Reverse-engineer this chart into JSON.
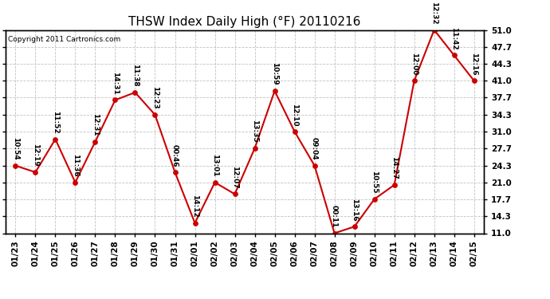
{
  "title": "THSW Index Daily High (°F) 20110216",
  "copyright": "Copyright 2011 Cartronics.com",
  "dates": [
    "01/23",
    "01/24",
    "01/25",
    "01/26",
    "01/27",
    "01/28",
    "01/29",
    "01/30",
    "01/31",
    "02/01",
    "02/02",
    "02/03",
    "02/04",
    "02/05",
    "02/06",
    "02/07",
    "02/08",
    "02/09",
    "02/10",
    "02/11",
    "02/12",
    "02/13",
    "02/14",
    "02/15"
  ],
  "values": [
    24.3,
    23.0,
    29.5,
    21.0,
    29.0,
    37.2,
    38.7,
    34.3,
    23.0,
    13.0,
    21.0,
    18.7,
    27.7,
    39.0,
    31.0,
    24.3,
    11.0,
    12.3,
    17.7,
    20.5,
    41.0,
    51.0,
    46.0,
    41.0
  ],
  "labels": [
    "10:54",
    "12:19",
    "11:52",
    "11:36",
    "12:31",
    "14:31",
    "11:38",
    "12:23",
    "00:46",
    "14:12",
    "13:01",
    "12:07",
    "13:35",
    "10:59",
    "12:10",
    "09:04",
    "00:11",
    "13:16",
    "10:55",
    "14:27",
    "12:00",
    "12:32",
    "11:42",
    "12:16"
  ],
  "line_color": "#cc0000",
  "marker_color": "#cc0000",
  "background_color": "#ffffff",
  "grid_color": "#bbbbbb",
  "ylim": [
    11.0,
    51.0
  ],
  "yticks": [
    11.0,
    14.3,
    17.7,
    21.0,
    24.3,
    27.7,
    31.0,
    34.3,
    37.7,
    41.0,
    44.3,
    47.7,
    51.0
  ],
  "title_fontsize": 11,
  "label_fontsize": 6.5,
  "copyright_fontsize": 6.5,
  "tick_fontsize": 7.5
}
